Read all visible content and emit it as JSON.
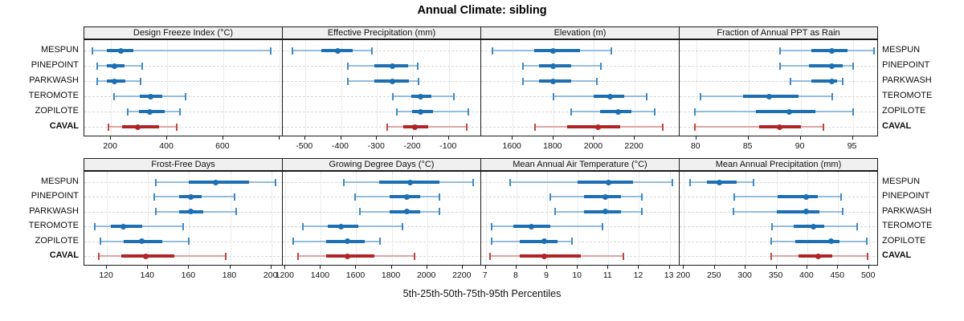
{
  "title": "Annual Climate: sibling",
  "xlabel": "5th-25th-50th-75th-95th Percentiles",
  "sites": [
    "MESPUN",
    "PINEPOINT",
    "PARKWASH",
    "TEROMOTE",
    "ZOPILOTE",
    "CAVAL"
  ],
  "highlight_site": "CAVAL",
  "colors": {
    "series_main": "#1c6fb2",
    "series_cap": "#3f8ac6",
    "series_range": "#93bddf",
    "highlight_main": "#b22424",
    "highlight_cap": "#c14747",
    "highlight_range": "#dda4a4",
    "grid": "#d7d7d7",
    "strip_bg": "#f0f0f0",
    "panel_border": "#1a1a1a"
  },
  "chart_data": {
    "type": "dotplot-trellis",
    "statistic": "5th-25th-50th-75th-95th percentiles per site",
    "legend_position": "none",
    "grid": true,
    "panels": [
      {
        "title": "Design Freeze Index (°C)",
        "xlim": [
          105,
          815
        ],
        "ticks": [
          {
            "v": 200,
            "t": "200"
          },
          {
            "v": 400,
            "t": "400"
          },
          {
            "v": 600,
            "t": "600"
          },
          {
            "v": 800,
            "t": ""
          }
        ],
        "series": [
          [
            135,
            185,
            235,
            280,
            770
          ],
          [
            150,
            185,
            212,
            248,
            310
          ],
          [
            150,
            185,
            212,
            250,
            305
          ],
          [
            210,
            303,
            340,
            382,
            465
          ],
          [
            260,
            300,
            337,
            390,
            445
          ],
          [
            190,
            240,
            295,
            370,
            435
          ]
        ]
      },
      {
        "title": "Effective Precipitation (mm)",
        "xlim": [
          -562,
          -8
        ],
        "ticks": [
          {
            "v": -500,
            "t": "-500"
          },
          {
            "v": -400,
            "t": "-400"
          },
          {
            "v": -300,
            "t": "-300"
          },
          {
            "v": -200,
            "t": "-200"
          },
          {
            "v": -100,
            "t": "-100"
          }
        ],
        "series": [
          [
            -535,
            -455,
            -410,
            -368,
            -315
          ],
          [
            -380,
            -308,
            -257,
            -214,
            -186
          ],
          [
            -380,
            -308,
            -257,
            -212,
            -184
          ],
          [
            -257,
            -205,
            -178,
            -148,
            -87
          ],
          [
            -244,
            -202,
            -179,
            -145,
            -47
          ],
          [
            -272,
            -227,
            -195,
            -158,
            -50
          ]
        ]
      },
      {
        "title": "Elevation (m)",
        "xlim": [
          1445,
          2425
        ],
        "ticks": [
          {
            "v": 1600,
            "t": "1600"
          },
          {
            "v": 1800,
            "t": "1800"
          },
          {
            "v": 2000,
            "t": "2000"
          },
          {
            "v": 2200,
            "t": "2200"
          }
        ],
        "series": [
          [
            1500,
            1705,
            1800,
            1930,
            2085
          ],
          [
            1652,
            1730,
            1800,
            1888,
            2035
          ],
          [
            1652,
            1730,
            1800,
            1888,
            2015
          ],
          [
            1800,
            2000,
            2080,
            2150,
            2260
          ],
          [
            1888,
            2030,
            2120,
            2185,
            2300
          ],
          [
            1710,
            1868,
            2020,
            2130,
            2338
          ]
        ]
      },
      {
        "title": "Fraction of Annual PPT as Rain",
        "xlim": [
          78.4,
          97.5
        ],
        "ticks": [
          {
            "v": 80,
            "t": "80"
          },
          {
            "v": 85,
            "t": "85"
          },
          {
            "v": 90,
            "t": "90"
          },
          {
            "v": 95,
            "t": "95"
          }
        ],
        "series": [
          [
            88,
            91,
            93,
            94.5,
            97
          ],
          [
            88,
            90.8,
            93,
            94,
            95
          ],
          [
            89,
            91,
            93,
            93.5,
            94
          ],
          [
            80.4,
            84.5,
            87,
            89.8,
            93
          ],
          [
            79.9,
            85.7,
            88.9,
            91.4,
            95
          ],
          [
            79.9,
            86,
            88,
            90,
            92.2
          ]
        ]
      },
      {
        "title": "Frost-Free Days",
        "xlim": [
          109,
          206
        ],
        "ticks": [
          {
            "v": 120,
            "t": "120"
          },
          {
            "v": 140,
            "t": "140"
          },
          {
            "v": 160,
            "t": "160"
          },
          {
            "v": 180,
            "t": "180"
          },
          {
            "v": 200,
            "t": "200"
          }
        ],
        "series": [
          [
            144,
            160,
            173,
            189,
            202
          ],
          [
            143,
            155,
            161,
            166,
            182
          ],
          [
            144,
            155,
            161,
            167,
            183
          ],
          [
            114,
            122,
            128,
            137,
            157
          ],
          [
            117,
            128,
            137,
            147,
            160
          ],
          [
            116,
            127,
            139,
            153,
            178
          ]
        ]
      },
      {
        "title": "Growing Degree Days (°C)",
        "xlim": [
          1185,
          2310
        ],
        "ticks": [
          {
            "v": 1200,
            "t": "1200"
          },
          {
            "v": 1400,
            "t": "1400"
          },
          {
            "v": 1600,
            "t": "1600"
          },
          {
            "v": 1800,
            "t": "1800"
          },
          {
            "v": 2000,
            "t": "2000"
          },
          {
            "v": 2200,
            "t": "2200"
          }
        ],
        "series": [
          [
            1530,
            1730,
            1905,
            2070,
            2260
          ],
          [
            1595,
            1790,
            1885,
            1962,
            2070
          ],
          [
            1620,
            1790,
            1885,
            1962,
            2070
          ],
          [
            1300,
            1440,
            1515,
            1612,
            1860
          ],
          [
            1245,
            1430,
            1550,
            1650,
            1735
          ],
          [
            1270,
            1430,
            1550,
            1700,
            1930
          ]
        ]
      },
      {
        "title": "Mean Annual Air Temperature (°C)",
        "xlim": [
          6.85,
          13.35
        ],
        "ticks": [
          {
            "v": 7,
            "t": "7"
          },
          {
            "v": 8,
            "t": "8"
          },
          {
            "v": 9,
            "t": "9"
          },
          {
            "v": 10,
            "t": "10"
          },
          {
            "v": 11,
            "t": "11"
          },
          {
            "v": 12,
            "t": "12"
          },
          {
            "v": 13,
            "t": "13"
          }
        ],
        "series": [
          [
            7.8,
            10.0,
            11.0,
            11.8,
            13.1
          ],
          [
            9.1,
            10.2,
            10.9,
            11.4,
            12.1
          ],
          [
            9.25,
            10.2,
            10.9,
            11.4,
            12.1
          ],
          [
            7.2,
            7.9,
            8.5,
            9.1,
            10.8
          ],
          [
            7.2,
            8.1,
            8.9,
            9.35,
            9.8
          ],
          [
            7.15,
            8.1,
            8.9,
            10.1,
            11.5
          ]
        ]
      },
      {
        "title": "Mean Annual Precipitation (mm)",
        "xlim": [
          193,
          516
        ],
        "ticks": [
          {
            "v": 200,
            "t": "200"
          },
          {
            "v": 250,
            "t": "250"
          },
          {
            "v": 300,
            "t": "300"
          },
          {
            "v": 350,
            "t": "350"
          },
          {
            "v": 400,
            "t": "400"
          },
          {
            "v": 450,
            "t": "450"
          },
          {
            "v": 500,
            "t": "500"
          }
        ],
        "series": [
          [
            210,
            237,
            258,
            285,
            313
          ],
          [
            282,
            352,
            398,
            417,
            455
          ],
          [
            280,
            350,
            398,
            420,
            457
          ],
          [
            343,
            378,
            410,
            428,
            481
          ],
          [
            341,
            380,
            438,
            452,
            497
          ],
          [
            342,
            386,
            418,
            441,
            498
          ]
        ]
      }
    ]
  }
}
